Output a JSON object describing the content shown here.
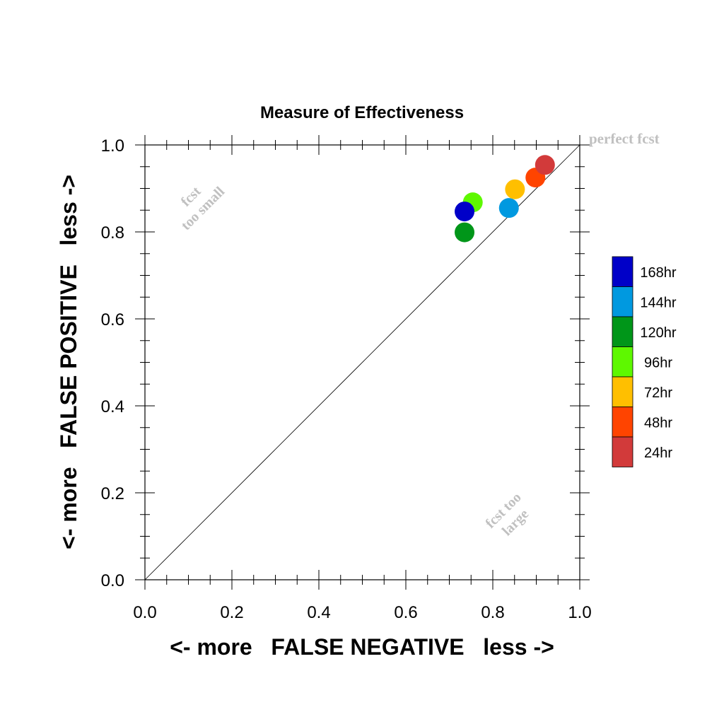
{
  "chart_data": {
    "type": "scatter",
    "title": "Measure of Effectiveness",
    "xlabel": "<- more   FALSE NEGATIVE   less ->",
    "ylabel": "<- more   FALSE POSITIVE   less ->",
    "xlim": [
      0.0,
      1.0
    ],
    "ylim": [
      0.0,
      1.0
    ],
    "x_ticks": [
      "0.0",
      "0.2",
      "0.4",
      "0.6",
      "0.8",
      "1.0"
    ],
    "y_ticks": [
      "0.0",
      "0.2",
      "0.4",
      "0.6",
      "0.8",
      "1.0"
    ],
    "grid": false,
    "diagonal_line": true,
    "legend_placement": "right",
    "annotations": {
      "perfect": "perfect fcst",
      "small_line1": "fcst",
      "small_line2": "too small",
      "large_line1": "fcst too",
      "large_line2": "large"
    },
    "series": [
      {
        "name": "168hr",
        "color": "#0000c8",
        "x": 0.735,
        "y": 0.847
      },
      {
        "name": "144hr",
        "color": "#0099e0",
        "x": 0.837,
        "y": 0.855
      },
      {
        "name": "120hr",
        "color": "#009619",
        "x": 0.735,
        "y": 0.799
      },
      {
        "name": "96hr",
        "color": "#5ef800",
        "x": 0.754,
        "y": 0.868
      },
      {
        "name": "72hr",
        "color": "#ffbf00",
        "x": 0.851,
        "y": 0.898
      },
      {
        "name": "48hr",
        "color": "#ff4400",
        "x": 0.898,
        "y": 0.925
      },
      {
        "name": "24hr",
        "color": "#d23a3a",
        "x": 0.92,
        "y": 0.954
      }
    ]
  }
}
